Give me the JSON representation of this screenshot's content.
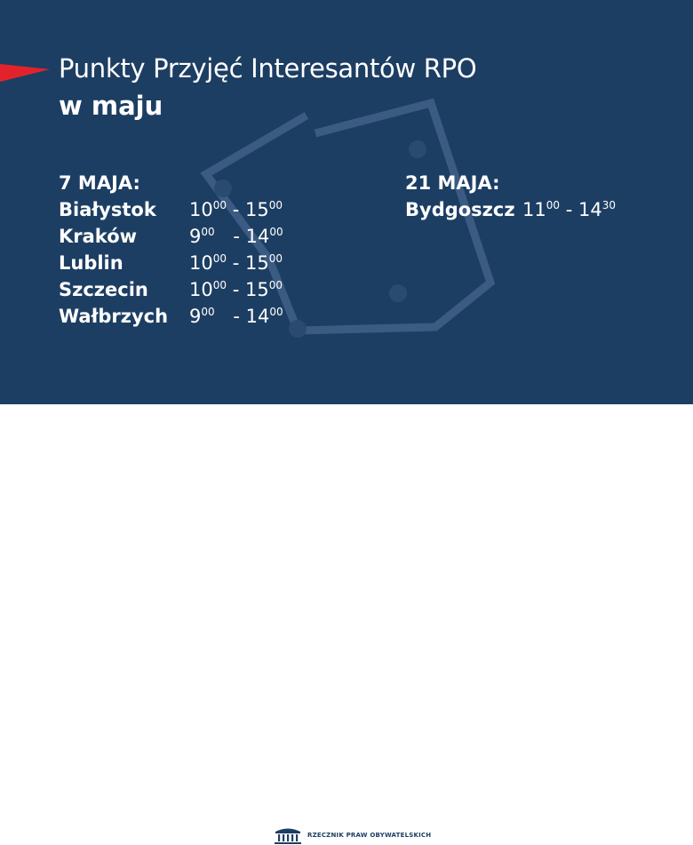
{
  "title": "Punkty Przyjęć Interesantów RPO",
  "subtitle": "w maju",
  "columns": [
    {
      "heading": "7 MAJA:",
      "rows": [
        {
          "city": "Białystok",
          "from_h": "10",
          "from_m": "00",
          "sep": " - ",
          "to_h": "15",
          "to_m": "00"
        },
        {
          "city": "Kraków",
          "from_h": "9",
          "from_m": "00",
          "sep": " - ",
          "to_h": "14",
          "to_m": "00"
        },
        {
          "city": "Lublin",
          "from_h": "10",
          "from_m": "00",
          "sep": " - ",
          "to_h": "15",
          "to_m": "00"
        },
        {
          "city": "Szczecin",
          "from_h": "10",
          "from_m": "00",
          "sep": " - ",
          "to_h": "15",
          "to_m": "00"
        },
        {
          "city": "Wałbrzych",
          "from_h": "9",
          "from_m": "00",
          "sep": " - ",
          "to_h": "14",
          "to_m": "00"
        }
      ]
    },
    {
      "heading": "21 MAJA:",
      "rows": [
        {
          "city": "Bydgoszcz",
          "from_h": "11",
          "from_m": "00",
          "sep": " - ",
          "to_h": "14",
          "to_m": "30"
        }
      ]
    }
  ],
  "footer": {
    "logo_text": "RZECZNIK PRAW OBYWATELSKICH"
  },
  "colors": {
    "background": "#1d3e63",
    "accent": "#e3232b",
    "text": "#ffffff"
  }
}
